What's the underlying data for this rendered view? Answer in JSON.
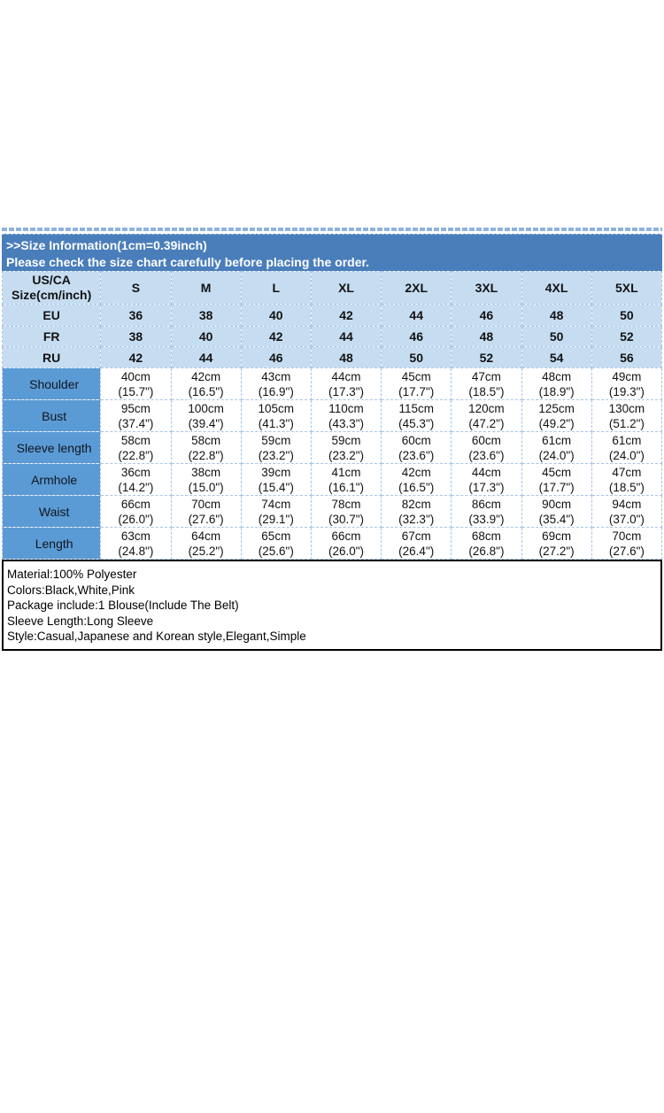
{
  "banner": {
    "line1": ">>Size Information(1cm=0.39inch)",
    "line2": "Please check the size chart carefully before placing the order."
  },
  "size_table": {
    "header_label_line1": "US/CA",
    "header_label_line2": "Size(cm/inch)",
    "size_columns": [
      "S",
      "M",
      "L",
      "XL",
      "2XL",
      "3XL",
      "4XL",
      "5XL"
    ],
    "region_rows": [
      {
        "label": "EU",
        "values": [
          "36",
          "38",
          "40",
          "42",
          "44",
          "46",
          "48",
          "50"
        ]
      },
      {
        "label": "FR",
        "values": [
          "38",
          "40",
          "42",
          "44",
          "46",
          "48",
          "50",
          "52"
        ]
      },
      {
        "label": "RU",
        "values": [
          "42",
          "44",
          "46",
          "48",
          "50",
          "52",
          "54",
          "56"
        ]
      }
    ],
    "measurement_rows": [
      {
        "label": "Shoulder",
        "values": [
          {
            "cm": "40cm",
            "in": "(15.7\")"
          },
          {
            "cm": "42cm",
            "in": "(16.5\")"
          },
          {
            "cm": "43cm",
            "in": "(16.9\")"
          },
          {
            "cm": "44cm",
            "in": "(17.3\")"
          },
          {
            "cm": "45cm",
            "in": "(17.7\")"
          },
          {
            "cm": "47cm",
            "in": "(18.5\")"
          },
          {
            "cm": "48cm",
            "in": "(18.9\")"
          },
          {
            "cm": "49cm",
            "in": "(19.3\")"
          }
        ]
      },
      {
        "label": "Bust",
        "values": [
          {
            "cm": "95cm",
            "in": "(37.4\")"
          },
          {
            "cm": "100cm",
            "in": "(39.4\")"
          },
          {
            "cm": "105cm",
            "in": "(41.3\")"
          },
          {
            "cm": "110cm",
            "in": "(43.3\")"
          },
          {
            "cm": "115cm",
            "in": "(45.3\")"
          },
          {
            "cm": "120cm",
            "in": "(47.2\")"
          },
          {
            "cm": "125cm",
            "in": "(49.2\")"
          },
          {
            "cm": "130cm",
            "in": "(51.2\")"
          }
        ]
      },
      {
        "label": "Sleeve length",
        "values": [
          {
            "cm": "58cm",
            "in": "(22.8\")"
          },
          {
            "cm": "58cm",
            "in": "(22.8\")"
          },
          {
            "cm": "59cm",
            "in": "(23.2\")"
          },
          {
            "cm": "59cm",
            "in": "(23.2\")"
          },
          {
            "cm": "60cm",
            "in": "(23.6\")"
          },
          {
            "cm": "60cm",
            "in": "(23.6\")"
          },
          {
            "cm": "61cm",
            "in": "(24.0\")"
          },
          {
            "cm": "61cm",
            "in": "(24.0\")"
          }
        ]
      },
      {
        "label": "Armhole",
        "values": [
          {
            "cm": "36cm",
            "in": "(14.2\")"
          },
          {
            "cm": "38cm",
            "in": "(15.0\")"
          },
          {
            "cm": "39cm",
            "in": "(15.4\")"
          },
          {
            "cm": "41cm",
            "in": "(16.1\")"
          },
          {
            "cm": "42cm",
            "in": "(16.5\")"
          },
          {
            "cm": "44cm",
            "in": "(17.3\")"
          },
          {
            "cm": "45cm",
            "in": "(17.7\")"
          },
          {
            "cm": "47cm",
            "in": "(18.5\")"
          }
        ]
      },
      {
        "label": "Waist",
        "values": [
          {
            "cm": "66cm",
            "in": "(26.0\")"
          },
          {
            "cm": "70cm",
            "in": "(27.6\")"
          },
          {
            "cm": "74cm",
            "in": "(29.1\")"
          },
          {
            "cm": "78cm",
            "in": "(30.7\")"
          },
          {
            "cm": "82cm",
            "in": "(32.3\")"
          },
          {
            "cm": "86cm",
            "in": "(33.9\")"
          },
          {
            "cm": "90cm",
            "in": "(35.4\")"
          },
          {
            "cm": "94cm",
            "in": "(37.0\")"
          }
        ]
      },
      {
        "label": "Length",
        "values": [
          {
            "cm": "63cm",
            "in": "(24.8\")"
          },
          {
            "cm": "64cm",
            "in": "(25.2\")"
          },
          {
            "cm": "65cm",
            "in": "(25.6\")"
          },
          {
            "cm": "66cm",
            "in": "(26.0\")"
          },
          {
            "cm": "67cm",
            "in": "(26.4\")"
          },
          {
            "cm": "68cm",
            "in": "(26.8\")"
          },
          {
            "cm": "69cm",
            "in": "(27.2\")"
          },
          {
            "cm": "70cm",
            "in": "(27.6\")"
          }
        ]
      }
    ]
  },
  "product_info": {
    "lines": [
      "Material:100% Polyester",
      "Colors:Black,White,Pink",
      "Package include:1 Blouse(Include The Belt)",
      "Sleeve Length:Long Sleeve",
      "Style:Casual,Japanese and Korean style,Elegant,Simple"
    ]
  },
  "colors": {
    "banner_bg": "#4A7EBB",
    "header_cell_bg": "#C6DDF1",
    "label_column_bg": "#5B9BD5",
    "dashed_border": "#A6C6E6",
    "info_box_border": "#000000",
    "banner_text": "#FFFFFF",
    "table_text": "#121212"
  }
}
